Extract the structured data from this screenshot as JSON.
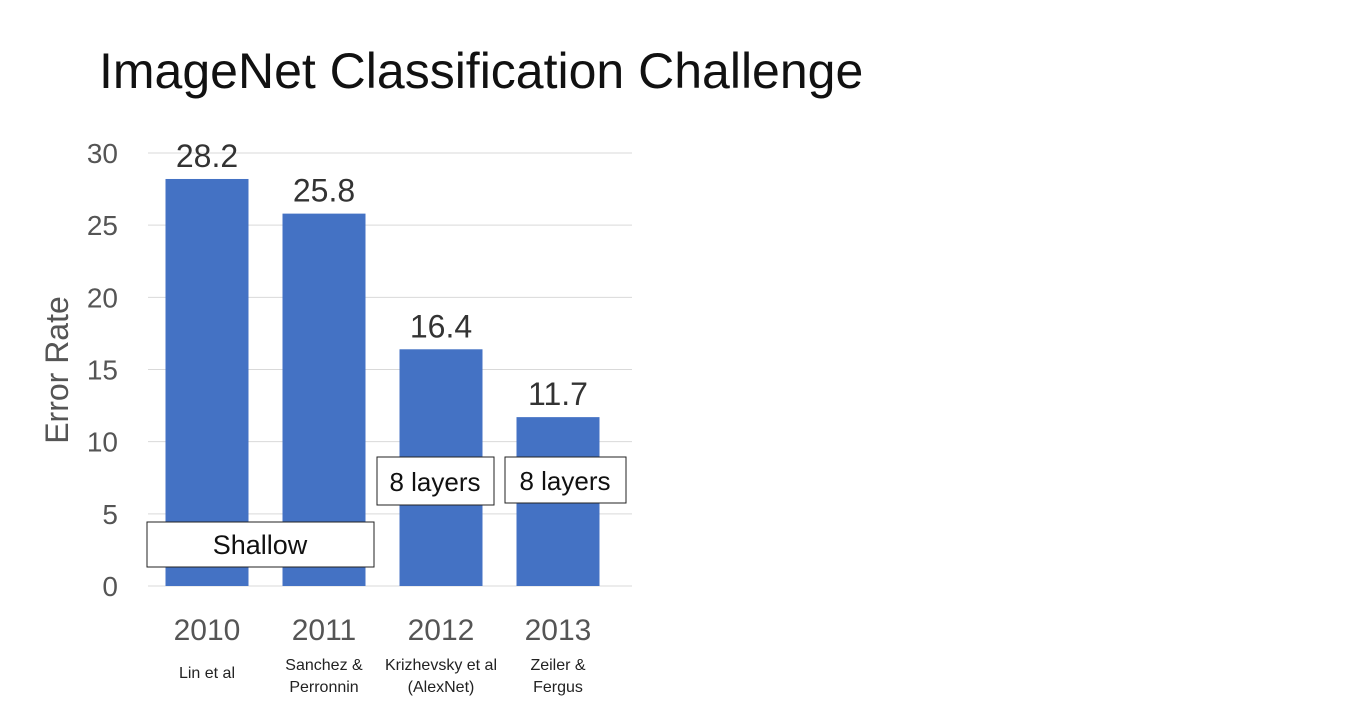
{
  "slide": {
    "title": "ImageNet Classification Challenge"
  },
  "chart_data": {
    "type": "bar",
    "categories": [
      "2010",
      "2011",
      "2012",
      "2013"
    ],
    "values": [
      28.2,
      25.8,
      16.4,
      11.7
    ],
    "data_labels": [
      "28.2",
      "25.8",
      "16.4",
      "11.7"
    ],
    "authors": [
      [
        "Lin et al"
      ],
      [
        "Sanchez &",
        "Perronnin"
      ],
      [
        "Krizhevsky et al",
        "(AlexNet)"
      ],
      [
        "Zeiler &",
        "Fergus"
      ]
    ],
    "title": "",
    "xlabel": "",
    "ylabel": "Error Rate",
    "ylim": [
      0,
      30
    ],
    "yticks": [
      0,
      5,
      10,
      15,
      20,
      25,
      30
    ],
    "grid": true,
    "bar_color": "#4472C4",
    "annotations": [
      {
        "text": "Shallow",
        "applies_to": [
          "2010",
          "2011"
        ]
      },
      {
        "text": "8 layers",
        "applies_to": [
          "2012"
        ]
      },
      {
        "text": "8 layers",
        "applies_to": [
          "2013"
        ]
      }
    ]
  }
}
